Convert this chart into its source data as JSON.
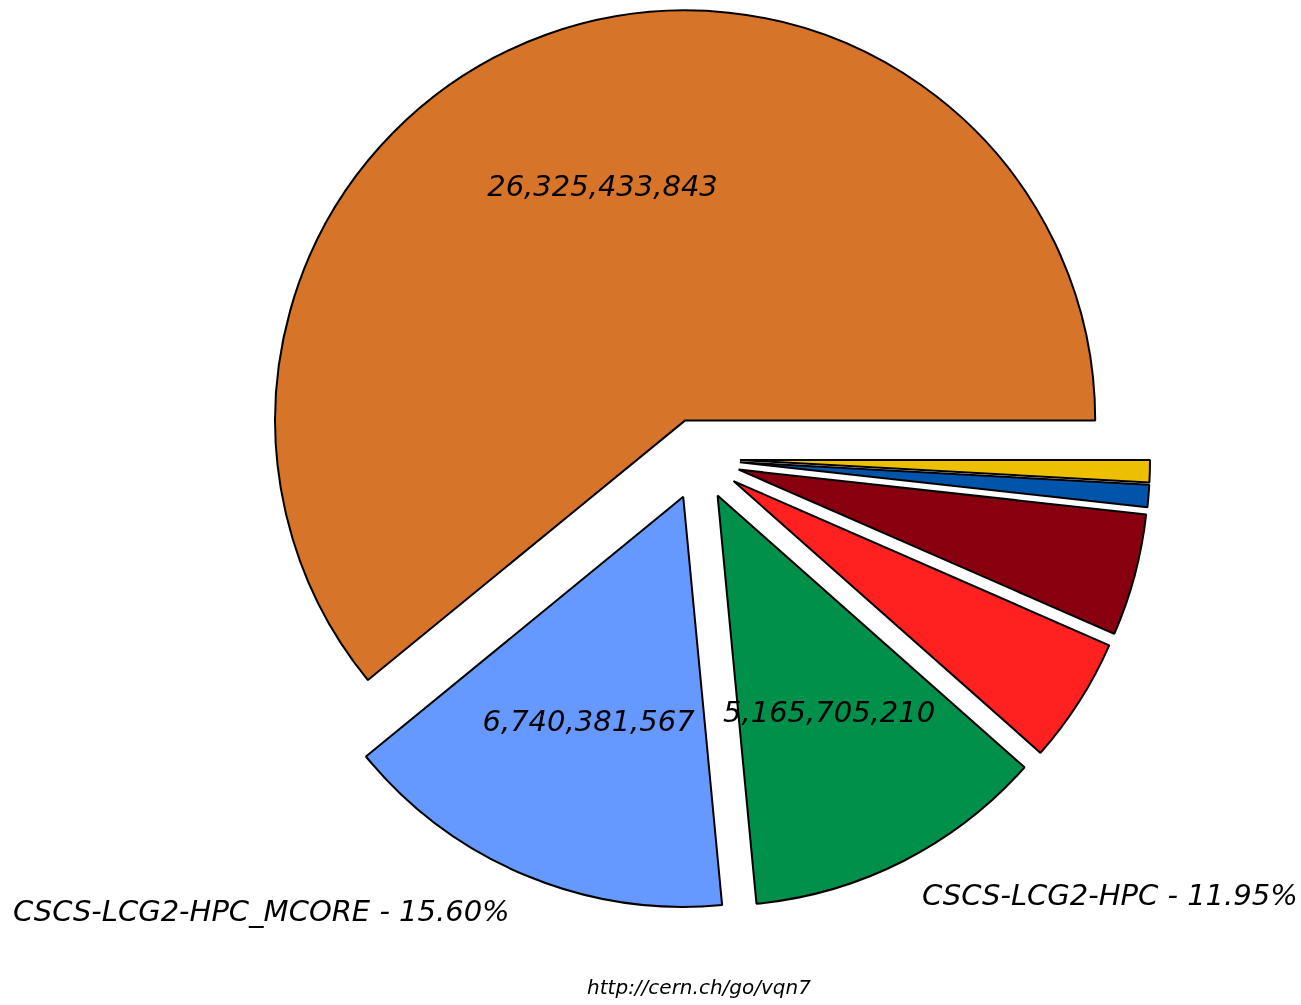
{
  "chart_data": {
    "type": "pie",
    "categories": [
      null,
      null,
      null,
      null,
      "CSCS-LCG2-HPC - 11.95%",
      "CSCS-LCG2-HPC_MCORE - 15.60%",
      null
    ],
    "values": [
      375000000,
      380000000,
      2080000000,
      2150000000,
      5165705210,
      6740381567,
      26325433843
    ],
    "colors": [
      "#ecc000",
      "#0055aa",
      "#880010",
      "#ff2020",
      "#00904a",
      "#6699ff",
      "#d6742a"
    ],
    "value_labels": [
      null,
      null,
      null,
      null,
      "5,165,705,210",
      "6,740,381,567",
      "26,325,433,843"
    ],
    "annotations": [
      "http://cern.ch/go/vqn7"
    ]
  }
}
